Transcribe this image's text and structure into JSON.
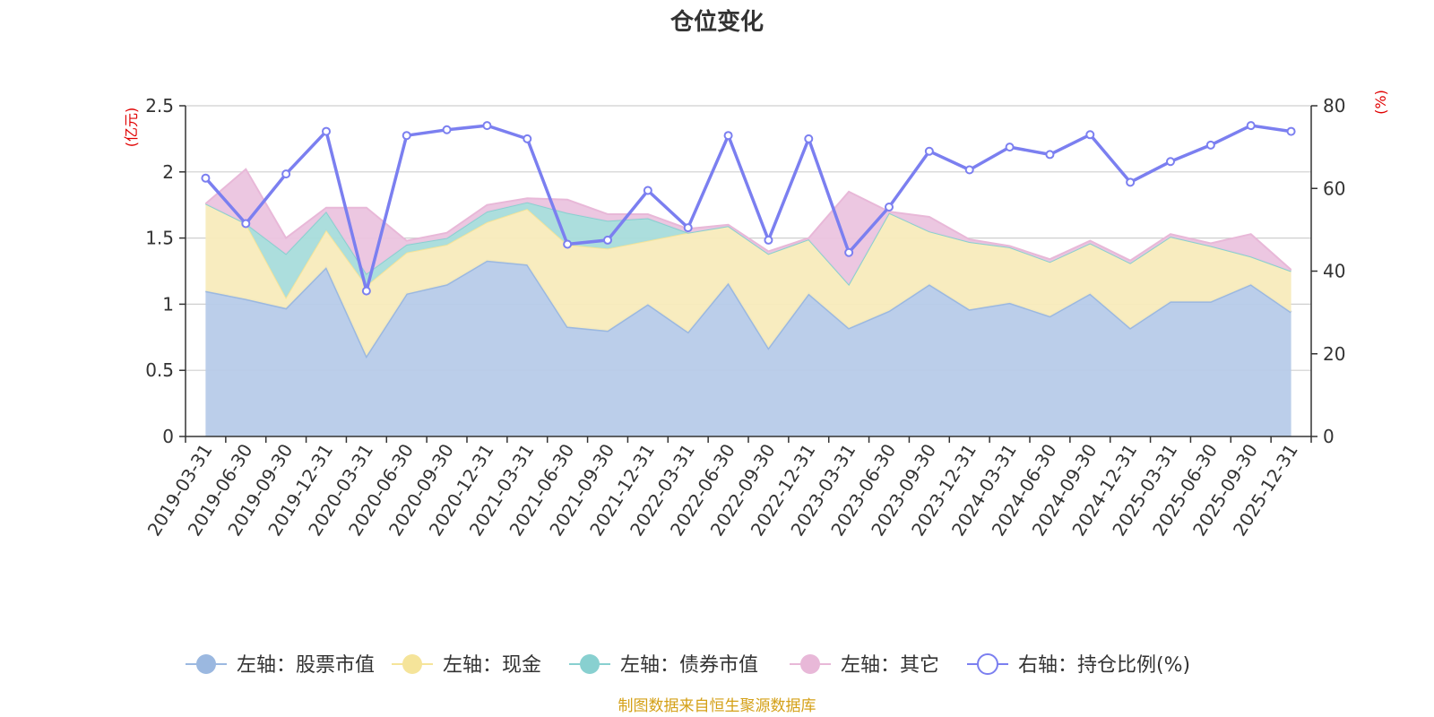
{
  "chart_data": {
    "type": "area",
    "title": "仓位变化",
    "source": "制图数据来自恒生聚源数据库",
    "left_axis": {
      "unit": "(亿元)",
      "ticks": [
        "0",
        "0.5",
        "1",
        "1.5",
        "2",
        "2.5"
      ],
      "min": 0,
      "max": 2.5
    },
    "right_axis": {
      "unit": "(%)",
      "ticks": [
        "0",
        "20",
        "40",
        "60",
        "80"
      ],
      "min": 0,
      "max": 80
    },
    "categories": [
      "2019-03-31",
      "2019-06-30",
      "2019-09-30",
      "2019-12-31",
      "2020-03-31",
      "2020-06-30",
      "2020-09-30",
      "2020-12-31",
      "2021-03-31",
      "2021-06-30",
      "2021-09-30",
      "2021-12-31",
      "2022-03-31",
      "2022-06-30",
      "2022-09-30",
      "2022-12-31",
      "2023-03-31",
      "2023-06-30",
      "2023-09-30",
      "2023-12-31",
      "2024-03-31",
      "2024-06-30",
      "2024-09-30",
      "2024-12-31",
      "2025-03-31",
      "2025-06-30",
      "2025-09-30",
      "2025-12-31"
    ],
    "series": [
      {
        "name": "左轴：股票市值",
        "axis": "left",
        "color": "#9bb8e0",
        "fill": "#b7cbe9",
        "values": [
          1.1,
          1.04,
          0.97,
          1.28,
          0.61,
          1.08,
          1.15,
          1.33,
          1.3,
          0.83,
          0.8,
          1.0,
          0.79,
          1.16,
          0.67,
          1.08,
          0.82,
          0.95,
          1.15,
          0.96,
          1.01,
          0.91,
          1.08,
          0.82,
          1.02,
          1.02,
          1.15,
          0.94
        ]
      },
      {
        "name": "左轴：现金",
        "axis": "left",
        "color": "#f5e49a",
        "fill": "#f8ebbc",
        "values": [
          0.66,
          0.57,
          0.08,
          0.28,
          0.53,
          0.31,
          0.3,
          0.29,
          0.42,
          0.62,
          0.62,
          0.48,
          0.75,
          0.43,
          0.71,
          0.41,
          0.33,
          0.74,
          0.4,
          0.51,
          0.42,
          0.41,
          0.38,
          0.49,
          0.49,
          0.42,
          0.21,
          0.31
        ]
      },
      {
        "name": "左轴：债券市值",
        "axis": "left",
        "color": "#88d0d0",
        "fill": "#a8dcdb",
        "values": [
          0,
          0,
          0.33,
          0.14,
          0.09,
          0.06,
          0.05,
          0.08,
          0.05,
          0.24,
          0.21,
          0.17,
          0,
          0,
          0,
          0,
          0,
          0,
          0,
          0,
          0,
          0,
          0,
          0,
          0,
          0,
          0,
          0
        ]
      },
      {
        "name": "左轴：其它",
        "axis": "left",
        "color": "#e8b8d8",
        "fill": "#ebc4df",
        "values": [
          0.0,
          0.41,
          0.12,
          0.03,
          0.5,
          0.03,
          0.04,
          0.05,
          0.03,
          0.1,
          0.05,
          0.03,
          0.03,
          0.01,
          0.02,
          0.01,
          0.7,
          0.01,
          0.11,
          0.02,
          0.01,
          0.02,
          0.02,
          0.02,
          0.02,
          0.02,
          0.17,
          0.01
        ]
      },
      {
        "name": "右轴：持仓比例(%)",
        "axis": "right",
        "color": "#7b7ff0",
        "values": [
          62.5,
          51.5,
          63.5,
          73.8,
          35.2,
          72.8,
          74.2,
          75.2,
          72.0,
          46.5,
          47.5,
          59.5,
          50.5,
          72.8,
          47.5,
          72.0,
          44.5,
          55.5,
          69.0,
          64.5,
          70.0,
          68.2,
          73.0,
          61.5,
          66.5,
          70.5,
          75.2,
          73.8
        ]
      }
    ]
  }
}
